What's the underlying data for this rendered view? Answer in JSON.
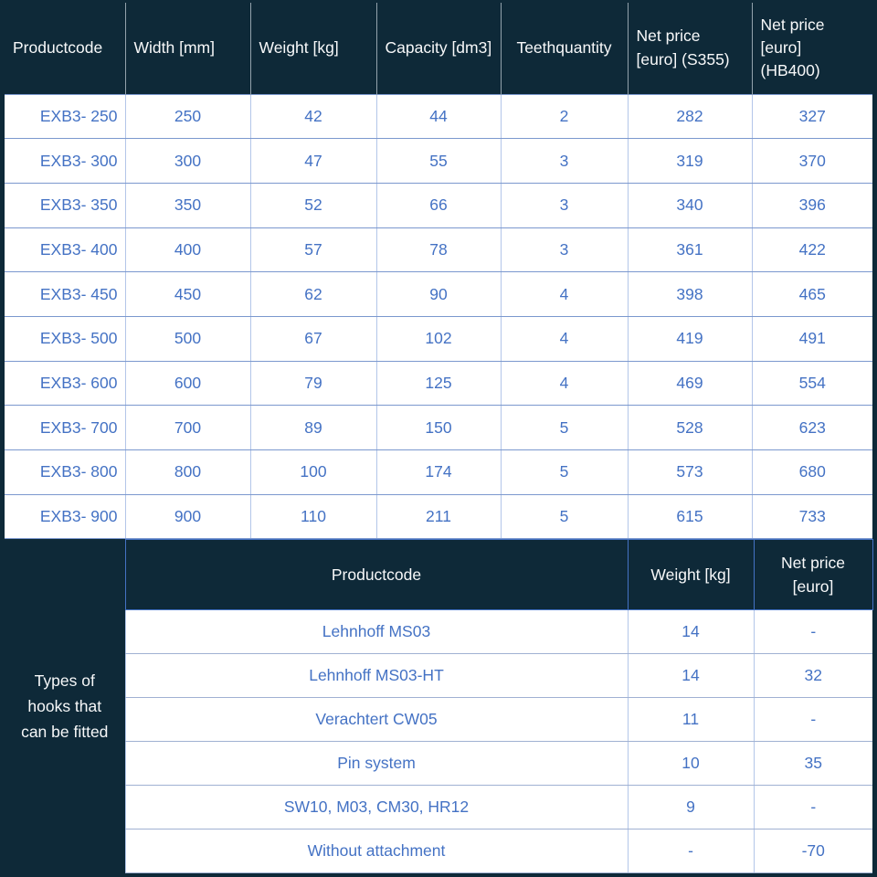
{
  "colors": {
    "header_bg": "#0E2938",
    "header_text": "#F7F8F9",
    "cell_text": "#4472C4",
    "row_border": "#7B98CE",
    "column_border": "#B3C6E9",
    "hooks_header_border": "#4472C4"
  },
  "main_table": {
    "columns": [
      "Productcode",
      "Width [mm]",
      "Weight [kg]",
      "Capacity [dm3]",
      "Teethquantity",
      "Net price [euro] (S355)",
      "Net price [euro] (HB400)"
    ],
    "rows": [
      [
        "EXB3- 250",
        "250",
        "42",
        "44",
        "2",
        "282",
        "327"
      ],
      [
        "EXB3- 300",
        "300",
        "47",
        "55",
        "3",
        "319",
        "370"
      ],
      [
        "EXB3- 350",
        "350",
        "52",
        "66",
        "3",
        "340",
        "396"
      ],
      [
        "EXB3- 400",
        "400",
        "57",
        "78",
        "3",
        "361",
        "422"
      ],
      [
        "EXB3- 450",
        "450",
        "62",
        "90",
        "4",
        "398",
        "465"
      ],
      [
        "EXB3- 500",
        "500",
        "67",
        "102",
        "4",
        "419",
        "491"
      ],
      [
        "EXB3- 600",
        "600",
        "79",
        "125",
        "4",
        "469",
        "554"
      ],
      [
        "EXB3- 700",
        "700",
        "89",
        "150",
        "5",
        "528",
        "623"
      ],
      [
        "EXB3- 800",
        "800",
        "100",
        "174",
        "5",
        "573",
        "680"
      ],
      [
        "EXB3- 900",
        "900",
        "110",
        "211",
        "5",
        "615",
        "733"
      ]
    ]
  },
  "hooks_table": {
    "side_label": "Types of hooks that can be fitted",
    "columns": [
      "Productcode",
      "Weight [kg]",
      "Net price [euro]"
    ],
    "rows": [
      [
        "Lehnhoff MS03",
        "14",
        "-"
      ],
      [
        "Lehnhoff MS03-HT",
        "14",
        "32"
      ],
      [
        "Verachtert CW05",
        "11",
        "-"
      ],
      [
        "Pin system",
        "10",
        "35"
      ],
      [
        "SW10, M03, CM30, HR12",
        "9",
        "-"
      ],
      [
        "Without attachment",
        "-",
        "-70"
      ]
    ]
  }
}
